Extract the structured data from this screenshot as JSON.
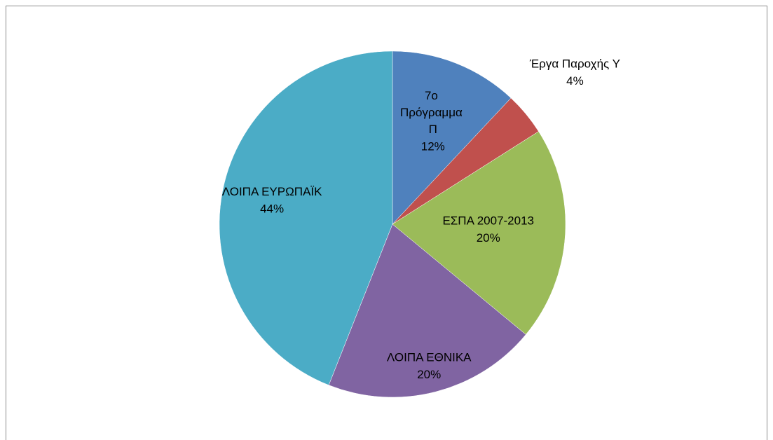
{
  "chart_data": {
    "type": "pie",
    "categories": [
      "7ο Πρόγραμμα Π",
      "Έργα Παροχής Υ",
      "ΕΣΠΑ 2007-2013",
      "ΛΟΙΠΑ ΕΘΝΙΚΑ",
      "ΛΟΙΠΑ ΕΥΡΩΠΑΪΚ"
    ],
    "values": [
      12,
      4,
      20,
      20,
      44
    ],
    "value_labels": [
      "12%",
      "4%",
      "20%",
      "20%",
      "44%"
    ],
    "colors": [
      "#4f81bd",
      "#c0504d",
      "#9bbb59",
      "#8064a2",
      "#4bacc6"
    ]
  }
}
